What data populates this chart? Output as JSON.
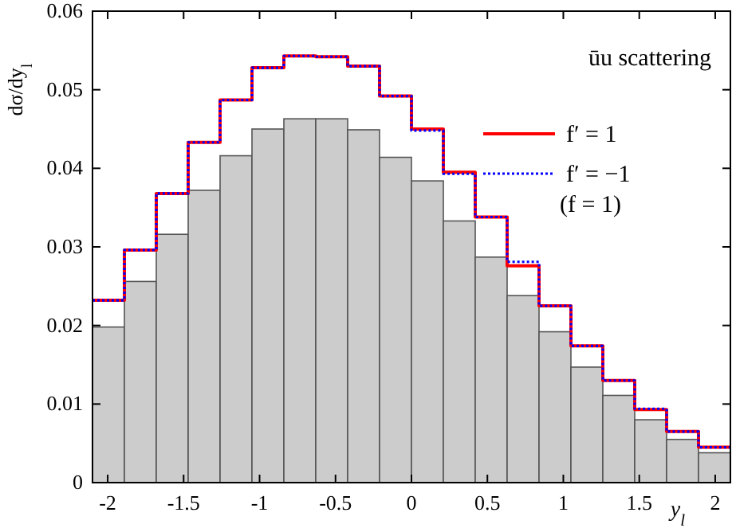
{
  "chart_data": {
    "type": "histogram",
    "xlabel": "y$_{l}$",
    "ylabel": "dσ/dy$_{l}$",
    "legend_title": "ūu scattering",
    "annotations": [
      "(f = 1)"
    ],
    "bins": [
      -2.1,
      -1.89,
      -1.68,
      -1.47,
      -1.26,
      -1.05,
      -0.84,
      -0.63,
      -0.42,
      -0.21,
      0,
      0.21,
      0.42,
      0.63,
      0.84,
      1.05,
      1.26,
      1.47,
      1.68,
      1.89,
      2.1
    ],
    "xlim": [
      -2.1,
      2.1
    ],
    "xticks": [
      -2,
      -1.5,
      -1,
      -0.5,
      0,
      0.5,
      1,
      1.5,
      2
    ],
    "ylim": [
      0,
      0.06
    ],
    "yticks": [
      0,
      0.01,
      0.02,
      0.03,
      0.04,
      0.05,
      0.06
    ],
    "grid": false,
    "legend": "top right",
    "series": [
      {
        "color": "#cccccc",
        "values": [
          0.0198,
          0.0256,
          0.0316,
          0.0372,
          0.0416,
          0.045,
          0.0463,
          0.0463,
          0.0449,
          0.0414,
          0.0384,
          0.0333,
          0.0287,
          0.0238,
          0.0192,
          0.0147,
          0.0111,
          0.008,
          0.0055,
          0.0038
        ]
      },
      {
        "type": "step",
        "name": "f′ = 1",
        "color": "#ff0000",
        "line_style": "solid",
        "x": [
          -2.1,
          -1.89,
          -1.68,
          -1.47,
          -1.26,
          -1.05,
          -0.84,
          -0.63,
          -0.42,
          -0.21,
          0,
          0.21,
          0.42,
          0.63,
          0.84,
          1.05,
          1.26,
          1.47,
          1.68,
          1.89,
          2.1
        ],
        "values": [
          0.0232,
          0.0296,
          0.0368,
          0.0433,
          0.0487,
          0.0528,
          0.0543,
          0.0542,
          0.053,
          0.0492,
          0.045,
          0.0395,
          0.0338,
          0.0276,
          0.0225,
          0.0174,
          0.013,
          0.0093,
          0.0065,
          0.0045,
          0.0045
        ]
      },
      {
        "type": "step",
        "name": "f′ = −1",
        "color": "#0000ff",
        "line_style": "dotted",
        "x": [
          -2.1,
          -1.89,
          -1.68,
          -1.47,
          -1.26,
          -1.05,
          -0.84,
          -0.63,
          -0.42,
          -0.21,
          0,
          0.21,
          0.42,
          0.63,
          0.84,
          1.05,
          1.26,
          1.47,
          1.68,
          1.89,
          2.1
        ],
        "values": [
          0.0232,
          0.0296,
          0.0368,
          0.0433,
          0.0487,
          0.0528,
          0.0543,
          0.0542,
          0.053,
          0.0492,
          0.0448,
          0.0393,
          0.0338,
          0.0281,
          0.0225,
          0.0174,
          0.013,
          0.0094,
          0.0065,
          0.0045,
          0.0045
        ]
      }
    ]
  }
}
